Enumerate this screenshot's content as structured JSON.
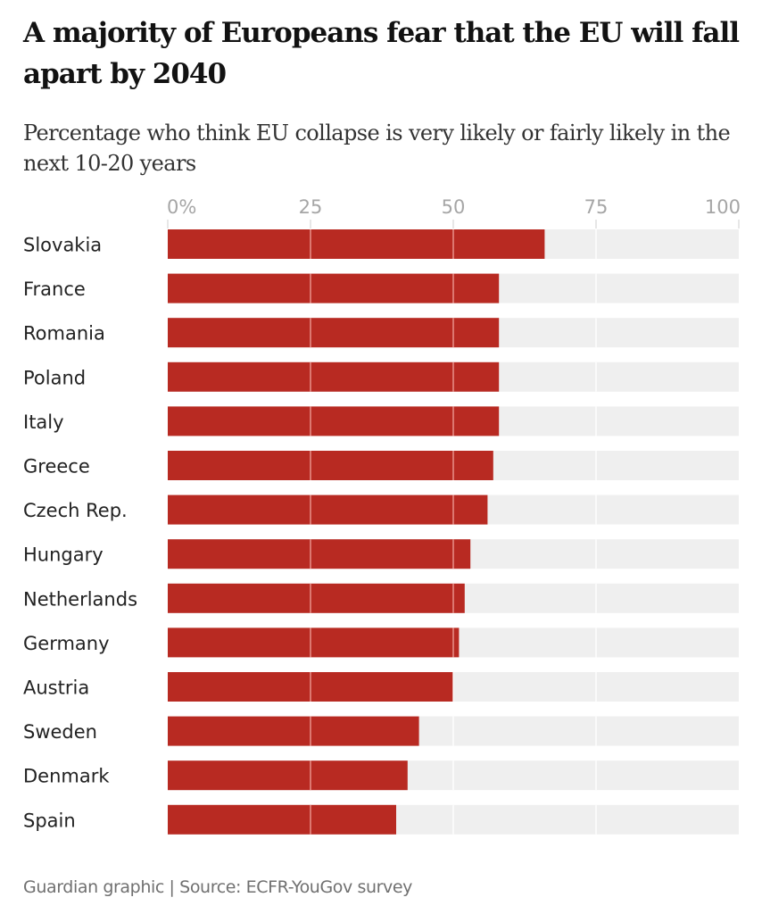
{
  "header": {
    "title": "A majority of Europeans fear that the EU will fall apart by 2040",
    "subtitle": "Percentage who think EU collapse is very likely or fairly likely in the next 10-20 years"
  },
  "footer": {
    "source": "Guardian graphic | Source: ECFR-YouGov survey"
  },
  "colors": {
    "bar": "#b82a22",
    "track": "#efefef",
    "gridline_on_bar": "#f0a19a",
    "gridline_on_track": "#ffffff"
  },
  "chart_data": {
    "type": "bar",
    "orientation": "horizontal",
    "title": "A majority of Europeans fear that the EU will fall apart by 2040",
    "subtitle": "Percentage who think EU collapse is very likely or fairly likely in the next 10-20 years",
    "xlabel": "",
    "ylabel": "",
    "xlim": [
      0,
      100
    ],
    "ticks": [
      0,
      25,
      50,
      75,
      100
    ],
    "tick_labels": [
      "0%",
      "25",
      "50",
      "75",
      "100"
    ],
    "grid": true,
    "categories": [
      "Slovakia",
      "France",
      "Romania",
      "Poland",
      "Italy",
      "Greece",
      "Czech Rep.",
      "Hungary",
      "Netherlands",
      "Germany",
      "Austria",
      "Sweden",
      "Denmark",
      "Spain"
    ],
    "values": [
      66,
      58,
      58,
      58,
      58,
      57,
      56,
      53,
      52,
      51,
      50,
      44,
      42,
      40
    ],
    "source": "Guardian graphic | Source: ECFR-YouGov survey"
  }
}
